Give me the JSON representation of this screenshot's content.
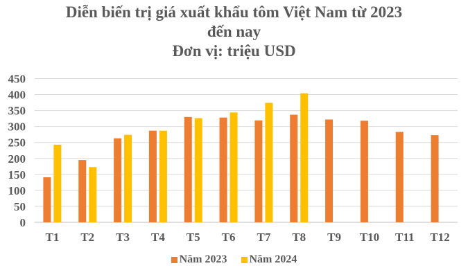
{
  "chart_data": {
    "type": "bar",
    "title": "Diễn biến trị giá xuất khẩu tôm Việt Nam từ 2023 đến nay",
    "title_lines": [
      "Diễn biến trị giá xuất khẩu tôm Việt Nam từ 2023",
      "đến nay",
      "Đơn vị: triệu USD"
    ],
    "subtitle": "Đơn vị: triệu USD",
    "xlabel": "",
    "ylabel": "",
    "categories": [
      "T1",
      "T2",
      "T3",
      "T4",
      "T5",
      "T6",
      "T7",
      "T8",
      "T9",
      "T10",
      "T11",
      "T12"
    ],
    "series": [
      {
        "name": "Năm 2023",
        "color": "#ED7D31",
        "values": [
          141,
          195,
          263,
          287,
          330,
          328,
          319,
          337,
          322,
          318,
          283,
          273
        ]
      },
      {
        "name": "Năm 2024",
        "color": "#FFC000",
        "values": [
          243,
          173,
          274,
          287,
          326,
          344,
          374,
          404,
          null,
          null,
          null,
          null
        ]
      }
    ],
    "ylim": [
      0,
      450
    ],
    "yticks": [
      0,
      50,
      100,
      150,
      200,
      250,
      300,
      350,
      400,
      450
    ],
    "grid": true,
    "legend_position": "bottom"
  },
  "legend": {
    "items": [
      {
        "label": "Năm 2023",
        "color": "#ED7D31"
      },
      {
        "label": "Năm 2024",
        "color": "#FFC000"
      }
    ]
  }
}
